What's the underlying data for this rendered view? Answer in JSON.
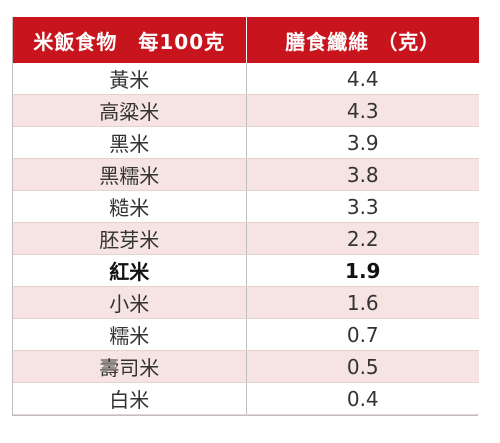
{
  "table": {
    "headers": [
      "米飯食物　每100克",
      "膳食纖維 （克）"
    ],
    "rows": [
      {
        "food": "黃米",
        "fiber": "4.4"
      },
      {
        "food": "高粱米",
        "fiber": "4.3"
      },
      {
        "food": "黑米",
        "fiber": "3.9"
      },
      {
        "food": "黑糯米",
        "fiber": "3.8"
      },
      {
        "food": "糙米",
        "fiber": "3.3"
      },
      {
        "food": "胚芽米",
        "fiber": "2.2"
      },
      {
        "food": "紅米",
        "fiber": "1.9",
        "highlight": true
      },
      {
        "food": "小米",
        "fiber": "1.6"
      },
      {
        "food": "糯米",
        "fiber": "0.7"
      },
      {
        "food": "壽司米",
        "fiber": "0.5"
      },
      {
        "food": "白米",
        "fiber": "0.4"
      }
    ]
  },
  "colors": {
    "header_bg": "#c8151d",
    "stripe_bg": "#f6e4e2"
  }
}
